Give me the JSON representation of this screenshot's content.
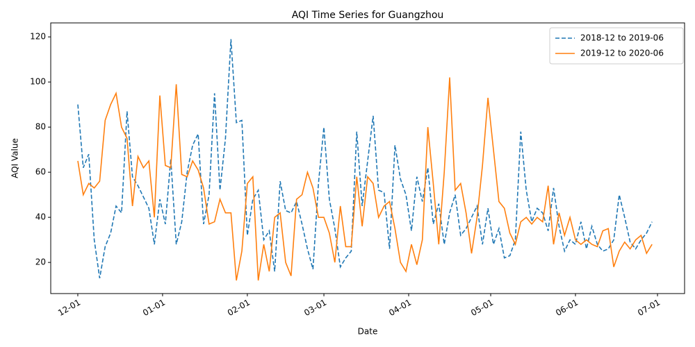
{
  "chart_data": {
    "type": "line",
    "title": "AQI Time Series for Guangzhou",
    "x_label": "Date",
    "y_label": "AQI Value",
    "x": [
      0,
      2,
      4,
      6,
      8,
      10,
      12,
      14,
      16,
      18,
      20,
      22,
      24,
      26,
      28,
      30,
      32,
      34,
      36,
      38,
      40,
      42,
      44,
      46,
      48,
      50,
      52,
      54,
      56,
      58,
      60,
      62,
      64,
      66,
      68,
      70,
      72,
      74,
      76,
      78,
      80,
      82,
      84,
      86,
      88,
      90,
      92,
      94,
      96,
      98,
      100,
      102,
      104,
      106,
      108,
      110,
      112,
      114,
      116,
      118,
      120,
      122,
      124,
      126,
      128,
      130,
      132,
      134,
      136,
      138,
      140,
      142,
      144,
      146,
      148,
      150,
      152,
      154,
      156,
      158,
      160,
      162,
      164,
      166,
      168,
      170,
      172,
      174,
      176,
      178,
      180,
      182,
      184,
      186,
      188,
      190,
      192,
      194,
      196,
      198,
      200,
      202,
      204,
      206,
      208,
      210
    ],
    "series": [
      {
        "name": "2018-12 to 2019-06",
        "color": "#1f77b4",
        "linestyle": "dashed",
        "values": [
          90,
          62,
          68,
          30,
          13,
          27,
          33,
          45,
          42,
          87,
          58,
          54,
          49,
          44,
          28,
          48,
          37,
          66,
          28,
          38,
          60,
          72,
          77,
          37,
          50,
          95,
          52,
          75,
          119,
          82,
          83,
          32,
          48,
          52,
          30,
          34,
          16,
          56,
          43,
          42,
          47,
          37,
          26,
          17,
          55,
          80,
          48,
          35,
          18,
          22,
          25,
          78,
          45,
          65,
          85,
          52,
          51,
          26,
          72,
          57,
          50,
          34,
          58,
          47,
          62,
          37,
          46,
          28,
          42,
          50,
          32,
          35,
          40,
          45,
          28,
          44,
          28,
          35,
          22,
          23,
          30,
          78,
          52,
          38,
          44,
          42,
          34,
          53,
          36,
          25,
          30,
          28,
          38,
          26,
          36,
          28,
          25,
          26,
          30,
          50,
          40,
          29,
          26,
          30,
          33,
          38
        ]
      },
      {
        "name": "2019-12 to 2020-06",
        "color": "#ff7f0e",
        "linestyle": "solid",
        "values": [
          65,
          50,
          55,
          53,
          56,
          83,
          90,
          95,
          80,
          75,
          45,
          67,
          62,
          65,
          40,
          94,
          63,
          62,
          99,
          59,
          58,
          65,
          61,
          53,
          37,
          38,
          48,
          42,
          42,
          12,
          25,
          55,
          58,
          12,
          28,
          16,
          40,
          42,
          20,
          14,
          48,
          50,
          60,
          53,
          40,
          40,
          33,
          20,
          45,
          27,
          27,
          58,
          36,
          58,
          55,
          40,
          45,
          47,
          35,
          20,
          16,
          28,
          19,
          30,
          80,
          55,
          28,
          60,
          102,
          52,
          55,
          42,
          24,
          40,
          63,
          93,
          70,
          47,
          44,
          33,
          28,
          38,
          40,
          37,
          40,
          38,
          54,
          28,
          42,
          32,
          40,
          30,
          28,
          30,
          28,
          27,
          34,
          35,
          18,
          25,
          29,
          26,
          30,
          32,
          24,
          28
        ]
      }
    ],
    "xlim": [
      -9.9,
      221.9
    ],
    "xticks": [
      {
        "value": 0,
        "label": "12-01"
      },
      {
        "value": 31,
        "label": "01-01"
      },
      {
        "value": 62,
        "label": "02-01"
      },
      {
        "value": 90,
        "label": "03-01"
      },
      {
        "value": 121,
        "label": "04-01"
      },
      {
        "value": 151,
        "label": "05-01"
      },
      {
        "value": 182,
        "label": "06-01"
      },
      {
        "value": 212,
        "label": "07-01"
      }
    ],
    "ylim": [
      6.2,
      126.2
    ],
    "yticks": [
      20,
      40,
      60,
      80,
      100,
      120
    ],
    "grid": false,
    "legend": "upper right"
  }
}
